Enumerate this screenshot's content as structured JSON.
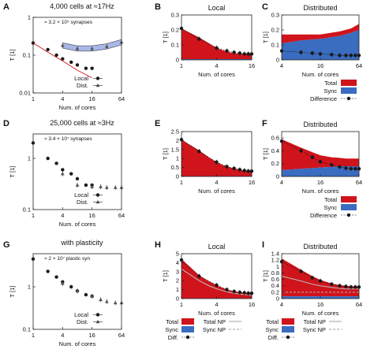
{
  "chart_data": [
    {
      "panel": "A",
      "type": "scatter",
      "scale": "log-log",
      "title": "4,000 cells at ≈17Hz",
      "note": "≈ 3.2 × 10⁵ synapses",
      "xlabel": "Num. of cores",
      "ylabel": "T [1]",
      "xticks": [
        "1",
        "4",
        "16",
        "64"
      ],
      "yticks": [
        "1",
        "0.1",
        "0.01"
      ],
      "xlim": [
        1,
        64
      ],
      "ylim": [
        0.01,
        1
      ],
      "legend": [
        "Local",
        "Dist."
      ],
      "series": [
        {
          "name": "Local",
          "marker": "circle",
          "x": [
            1,
            2,
            3,
            4,
            6,
            8,
            12,
            16
          ],
          "y": [
            0.21,
            0.14,
            0.1,
            0.08,
            0.065,
            0.055,
            0.045,
            0.045
          ]
        },
        {
          "name": "Dist.",
          "marker": "triangle",
          "x": [
            4,
            8,
            16,
            32,
            64
          ],
          "y": [
            0.18,
            0.15,
            0.15,
            0.17,
            0.22
          ]
        },
        {
          "name": "",
          "style": "fit-red",
          "x": [
            1,
            2,
            4,
            8,
            16
          ],
          "y": [
            0.21,
            0.12,
            0.07,
            0.04,
            0.025
          ]
        }
      ]
    },
    {
      "panel": "B",
      "type": "area",
      "title": "Local",
      "xlabel": "Num. of cores",
      "ylabel": "T [1]",
      "xticks": [
        "1",
        "4",
        "16"
      ],
      "yticks": [
        "0",
        "0.1",
        "0.2",
        "0.3"
      ],
      "xlim": [
        1,
        16
      ],
      "ylim": [
        0,
        0.3
      ],
      "x": [
        1,
        2,
        3,
        4,
        5,
        6,
        8,
        10,
        12,
        14,
        16
      ],
      "total": [
        0.21,
        0.15,
        0.11,
        0.08,
        0.065,
        0.055,
        0.045,
        0.04,
        0.04,
        0.04,
        0.04
      ],
      "sync": [
        0.005,
        0.005,
        0.005,
        0.005,
        0.005,
        0.005,
        0.005,
        0.005,
        0.005,
        0.005,
        0.005
      ],
      "diff_x": [
        1,
        2,
        4,
        6,
        8,
        10,
        12,
        14,
        16
      ],
      "diff": [
        0.21,
        0.14,
        0.08,
        0.06,
        0.05,
        0.045,
        0.04,
        0.04,
        0.04
      ],
      "legend": [
        "Total",
        "Sync",
        "Difference"
      ]
    },
    {
      "panel": "C",
      "type": "area",
      "title": "Distributed",
      "xlabel": "Num. of cores",
      "ylabel": "T [1]",
      "xticks": [
        "4",
        "16",
        "64"
      ],
      "yticks": [
        "0",
        "0.1",
        "0.2",
        "0.3"
      ],
      "xlim": [
        4,
        64
      ],
      "ylim": [
        0,
        0.3
      ],
      "x": [
        4,
        8,
        16,
        32,
        48,
        64
      ],
      "total": [
        0.17,
        0.17,
        0.17,
        0.19,
        0.21,
        0.24
      ],
      "sync": [
        0.11,
        0.13,
        0.14,
        0.16,
        0.18,
        0.2
      ],
      "diff_x": [
        4,
        8,
        12,
        16,
        24,
        32,
        40,
        48,
        56,
        64
      ],
      "diff": [
        0.06,
        0.05,
        0.045,
        0.04,
        0.035,
        0.03,
        0.03,
        0.03,
        0.03,
        0.03
      ],
      "legend": [
        "Total",
        "Sync",
        "Difference"
      ]
    },
    {
      "panel": "D",
      "type": "scatter",
      "scale": "log-log",
      "title": "25,000 cells at ≈3Hz",
      "note": "≈ 3.4 × 10⁷ synapses",
      "xlabel": "Num. of cores",
      "ylabel": "T [1]",
      "xticks": [
        "1",
        "4",
        "16",
        "64"
      ],
      "yticks": [
        "1",
        "0.1"
      ],
      "xlim": [
        1,
        64
      ],
      "ylim": [
        0.1,
        3
      ],
      "legend": [
        "Local",
        "Dist."
      ],
      "series": [
        {
          "name": "Local",
          "marker": "circle",
          "x": [
            1,
            2,
            3,
            4,
            6,
            8,
            12,
            16
          ],
          "y": [
            2.0,
            1.0,
            0.8,
            0.6,
            0.5,
            0.4,
            0.3,
            0.3
          ]
        },
        {
          "name": "Dist.",
          "marker": "triangle",
          "x": [
            4,
            8,
            16,
            24,
            32,
            48,
            64
          ],
          "y": [
            0.5,
            0.3,
            0.28,
            0.28,
            0.27,
            0.27,
            0.27
          ]
        }
      ]
    },
    {
      "panel": "E",
      "type": "area",
      "xlabel": "Num. of cores",
      "ylabel": "T [1]",
      "xticks": [
        "1",
        "4",
        "16"
      ],
      "yticks": [
        "0",
        "0.5",
        "1",
        "1.5",
        "2",
        "2.5"
      ],
      "xlim": [
        1,
        16
      ],
      "ylim": [
        0,
        2.5
      ],
      "x": [
        1,
        2,
        3,
        4,
        5,
        6,
        8,
        10,
        12,
        14,
        16
      ],
      "total": [
        2.05,
        1.45,
        1.05,
        0.8,
        0.65,
        0.55,
        0.45,
        0.38,
        0.33,
        0.3,
        0.3
      ],
      "sync": [
        0.02,
        0.02,
        0.02,
        0.02,
        0.02,
        0.02,
        0.02,
        0.02,
        0.02,
        0.02,
        0.02
      ],
      "diff_x": [
        1,
        2,
        4,
        6,
        8,
        10,
        12,
        14,
        16
      ],
      "diff": [
        2.05,
        1.4,
        0.8,
        0.55,
        0.45,
        0.38,
        0.33,
        0.3,
        0.3
      ],
      "legend": [
        "Total",
        "Sync",
        "Difference"
      ]
    },
    {
      "panel": "F",
      "type": "area",
      "title": "Distributed",
      "xlabel": "Num. of cores",
      "ylabel": "T [1]",
      "xticks": [
        "4",
        "16",
        "64"
      ],
      "yticks": [
        "0",
        "0.2",
        "0.4",
        "0.6"
      ],
      "xlim": [
        4,
        64
      ],
      "ylim": [
        0,
        0.7
      ],
      "x": [
        4,
        8,
        12,
        16,
        24,
        32,
        40,
        48,
        56,
        64
      ],
      "total": [
        0.58,
        0.45,
        0.38,
        0.33,
        0.3,
        0.29,
        0.28,
        0.28,
        0.28,
        0.28
      ],
      "sync": [
        0.1,
        0.12,
        0.13,
        0.14,
        0.15,
        0.16,
        0.16,
        0.16,
        0.16,
        0.16
      ],
      "diff_x": [
        4,
        8,
        12,
        16,
        24,
        32,
        40,
        48,
        56,
        64
      ],
      "diff": [
        0.55,
        0.4,
        0.3,
        0.23,
        0.18,
        0.15,
        0.13,
        0.12,
        0.12,
        0.12
      ],
      "legend": [
        "Total",
        "Sync",
        "Difference"
      ]
    },
    {
      "panel": "G",
      "type": "scatter",
      "scale": "log-log",
      "title": "with plasticity",
      "note": "≈ 2 × 10⁷ plastic syn",
      "xlabel": "Num. of cores",
      "ylabel": "T [1]",
      "xticks": [
        "1",
        "4",
        "16",
        "64"
      ],
      "yticks": [
        "1",
        "0.1"
      ],
      "xlim": [
        1,
        64
      ],
      "ylim": [
        0.1,
        6
      ],
      "legend": [
        "Local",
        "Dist."
      ],
      "series": [
        {
          "name": "Local",
          "marker": "circle",
          "x": [
            1,
            2,
            3,
            4,
            6,
            8,
            12,
            16
          ],
          "y": [
            4.5,
            2.3,
            1.7,
            1.3,
            1.0,
            0.8,
            0.65,
            0.6
          ]
        },
        {
          "name": "Dist.",
          "marker": "triangle",
          "x": [
            4,
            8,
            16,
            24,
            32,
            48,
            64
          ],
          "y": [
            1.2,
            0.8,
            0.6,
            0.5,
            0.45,
            0.42,
            0.42
          ]
        }
      ]
    },
    {
      "panel": "H",
      "type": "area",
      "title": "Local",
      "xlabel": "Num. of cores",
      "ylabel": "T [1]",
      "xticks": [
        "1",
        "4",
        "16"
      ],
      "yticks": [
        "0",
        "1",
        "2",
        "3",
        "4",
        "5"
      ],
      "xlim": [
        1,
        16
      ],
      "ylim": [
        0,
        5
      ],
      "x": [
        1,
        2,
        3,
        4,
        5,
        6,
        8,
        10,
        12,
        14,
        16
      ],
      "total": [
        4.4,
        2.6,
        1.9,
        1.5,
        1.2,
        1.0,
        0.8,
        0.7,
        0.65,
        0.6,
        0.6
      ],
      "sync": [
        0.03,
        0.03,
        0.03,
        0.03,
        0.03,
        0.03,
        0.03,
        0.03,
        0.03,
        0.03,
        0.03
      ],
      "total_np": [
        3.3,
        2.0,
        1.4,
        1.1,
        0.9,
        0.75,
        0.6,
        0.5,
        0.45,
        0.42,
        0.4
      ],
      "diff_x": [
        1,
        2,
        4,
        6,
        8,
        10,
        12,
        14,
        16
      ],
      "diff": [
        4.3,
        2.5,
        1.5,
        1.0,
        0.8,
        0.7,
        0.65,
        0.6,
        0.6
      ],
      "legend": [
        "Total",
        "Sync",
        "Diff.",
        "Total NP",
        "Sync NP"
      ]
    },
    {
      "panel": "I",
      "type": "area",
      "title": "Distributed",
      "xlabel": "Num. of cores",
      "ylabel": "T [1]",
      "xticks": [
        "4",
        "16",
        "64"
      ],
      "yticks": [
        "0",
        "0.2",
        "0.4",
        "0.6",
        "0.8",
        "1",
        "1.2",
        "1.4"
      ],
      "xlim": [
        4,
        64
      ],
      "ylim": [
        0,
        1.4
      ],
      "x": [
        4,
        8,
        12,
        16,
        24,
        32,
        40,
        48,
        56,
        64
      ],
      "total": [
        1.25,
        0.9,
        0.7,
        0.58,
        0.47,
        0.42,
        0.4,
        0.38,
        0.38,
        0.38
      ],
      "sync": [
        0.07,
        0.07,
        0.07,
        0.07,
        0.07,
        0.07,
        0.07,
        0.07,
        0.07,
        0.07
      ],
      "total_np": [
        0.7,
        0.55,
        0.45,
        0.4,
        0.35,
        0.32,
        0.3,
        0.3,
        0.3,
        0.3
      ],
      "sync_np": [
        0.2,
        0.2,
        0.2,
        0.2,
        0.2,
        0.2,
        0.2,
        0.2,
        0.2,
        0.2
      ],
      "diff_x": [
        4,
        8,
        12,
        16,
        24,
        32,
        40,
        48,
        56,
        64
      ],
      "diff": [
        1.15,
        0.85,
        0.65,
        0.55,
        0.45,
        0.4,
        0.38,
        0.36,
        0.36,
        0.36
      ],
      "legend": [
        "Total",
        "Sync",
        "Diff.",
        "Total NP",
        "Sync NP"
      ]
    }
  ],
  "colors": {
    "total": "#d0141c",
    "sync": "#3a6cc0",
    "marker": "#1a1a1a",
    "tri": "#555555",
    "np": "#bdbdbd",
    "triFill": "#a9b7e6"
  }
}
